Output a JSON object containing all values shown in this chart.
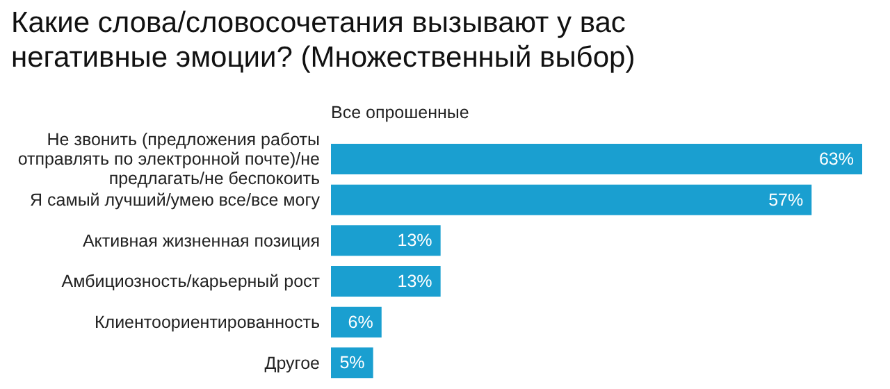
{
  "chart_data": {
    "type": "bar",
    "orientation": "horizontal",
    "title": "Какие слова/словосочетания вызывают у вас негативные эмоции? (Множественный выбор)",
    "categories": [
      "Не звонить (предложения работы отправлять по электронной почте)/не предлагать/не беспокоить",
      "Я самый лучший/умею все/все могу",
      "Активная жизненная позиция",
      "Амбициозность/карьерный рост",
      "Клиентоориентированность",
      "Другое"
    ],
    "series": [
      {
        "name": "Все опрошенные",
        "color": "#1a9fd0",
        "values": [
          63,
          57,
          13,
          13,
          6,
          5
        ],
        "value_labels": [
          "63%",
          "57%",
          "13%",
          "13%",
          "6%",
          "5%"
        ]
      }
    ],
    "legend": "top left",
    "grid": false
  }
}
